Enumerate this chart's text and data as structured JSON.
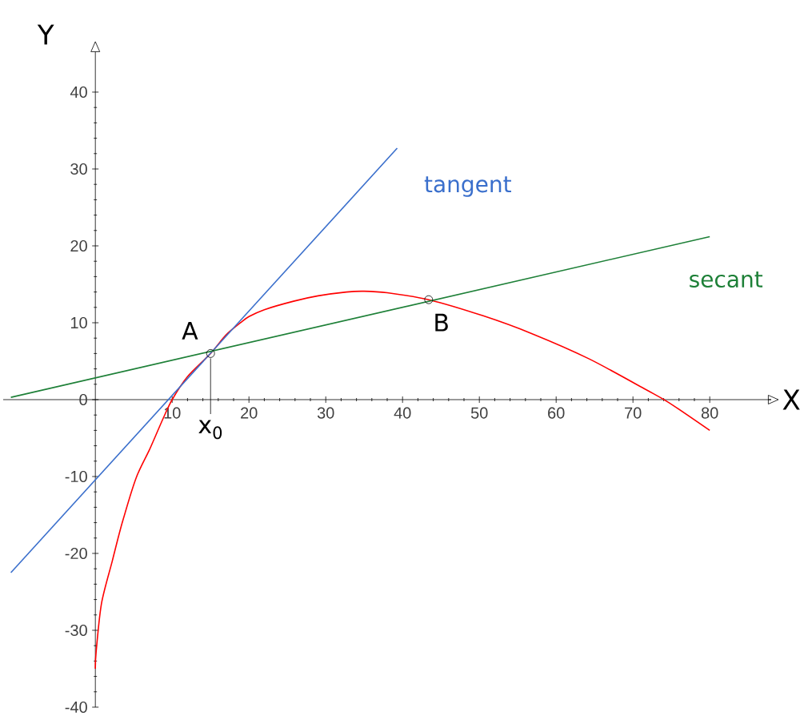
{
  "chart_data": {
    "type": "line",
    "xlabel": "X",
    "ylabel": "Y",
    "xlim": [
      -12,
      88
    ],
    "ylim": [
      -40,
      45
    ],
    "xticks": [
      10,
      20,
      30,
      40,
      50,
      60,
      70,
      80
    ],
    "yticks": [
      -40,
      -30,
      -20,
      -10,
      0,
      10,
      20,
      30,
      40
    ],
    "line_style": "solid",
    "grid": false,
    "series": [
      {
        "color": "#ff0000",
        "x": [
          0,
          0.1,
          0.8,
          2.2,
          3.5,
          5.3,
          7.1,
          8.8,
          10,
          12,
          15,
          17,
          18.9,
          20,
          22,
          25.8,
          29,
          32.7,
          35,
          38,
          43.4,
          50.5,
          56.8,
          64.3,
          71.7,
          74.7,
          80
        ],
        "values": [
          -35,
          -32.8,
          -26.5,
          -21,
          -16,
          -10.2,
          -6.4,
          -2.5,
          0,
          3,
          6,
          8.4,
          10,
          10.8,
          11.7,
          12.8,
          13.5,
          14,
          14.1,
          13.9,
          13,
          10.9,
          8.6,
          5.3,
          1.3,
          -0.4,
          -4
        ]
      },
      {
        "name": "tangent",
        "color": "#3a6fcc",
        "x": [
          -11,
          39.3
        ],
        "values": [
          -22.5,
          32.7
        ]
      },
      {
        "name": "secant",
        "color": "#1e8038",
        "x": [
          -11,
          80
        ],
        "values": [
          0.3,
          21.2
        ]
      },
      {
        "type": "scatter",
        "color": "#000000",
        "x": [
          15,
          43.4
        ],
        "values": [
          6,
          13
        ]
      }
    ],
    "annotations": [
      "A",
      "B",
      {
        "text": "x$_{0}$",
        "x": 15,
        "y": 6
      }
    ]
  }
}
